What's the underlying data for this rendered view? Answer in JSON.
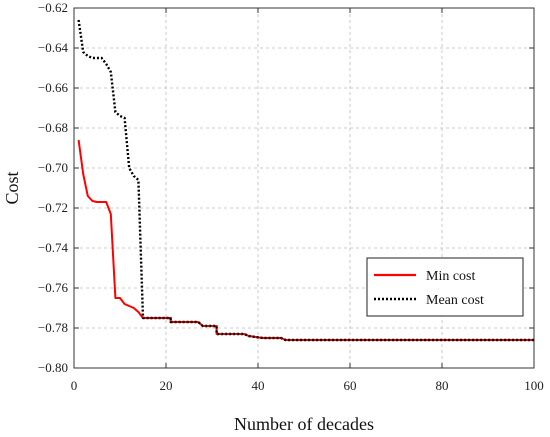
{
  "chart_data": {
    "type": "line",
    "xlabel": "Number of decades",
    "ylabel": "Cost",
    "xlim": [
      0,
      100
    ],
    "ylim": [
      -0.8,
      -0.62
    ],
    "xticks": [
      0,
      20,
      40,
      60,
      80,
      100
    ],
    "yticks": [
      -0.8,
      -0.78,
      -0.76,
      -0.74,
      -0.72,
      -0.7,
      -0.68,
      -0.66,
      -0.64,
      -0.62
    ],
    "xtick_labels": [
      "0",
      "20",
      "40",
      "60",
      "80",
      "100"
    ],
    "ytick_labels": [
      "−0.80",
      "−0.78",
      "−0.76",
      "−0.74",
      "−0.72",
      "−0.70",
      "−0.68",
      "−0.66",
      "−0.64",
      "−0.62"
    ],
    "grid": true,
    "legend_position": "lower-right",
    "series": [
      {
        "name": "Min cost",
        "color": "#ff0000",
        "style": "solid",
        "points": [
          [
            1,
            -0.686
          ],
          [
            2,
            -0.703
          ],
          [
            3,
            -0.714
          ],
          [
            4,
            -0.7165
          ],
          [
            5,
            -0.717
          ],
          [
            7,
            -0.717
          ],
          [
            8,
            -0.723
          ],
          [
            9,
            -0.765
          ],
          [
            10,
            -0.765
          ],
          [
            11,
            -0.768
          ],
          [
            12,
            -0.769
          ],
          [
            13,
            -0.77
          ],
          [
            14,
            -0.772
          ],
          [
            15,
            -0.775
          ],
          [
            21,
            -0.775
          ],
          [
            21,
            -0.777
          ],
          [
            27,
            -0.777
          ],
          [
            28,
            -0.779
          ],
          [
            31,
            -0.779
          ],
          [
            31,
            -0.783
          ],
          [
            37,
            -0.783
          ],
          [
            38,
            -0.784
          ],
          [
            41,
            -0.785
          ],
          [
            45,
            -0.785
          ],
          [
            46,
            -0.786
          ],
          [
            100,
            -0.786
          ]
        ]
      },
      {
        "name": "Mean cost",
        "color": "#000000",
        "style": "dotted",
        "points": [
          [
            1,
            -0.626
          ],
          [
            2,
            -0.642
          ],
          [
            3,
            -0.644
          ],
          [
            4,
            -0.645
          ],
          [
            6,
            -0.645
          ],
          [
            7,
            -0.648
          ],
          [
            8,
            -0.652
          ],
          [
            9,
            -0.672
          ],
          [
            10,
            -0.674
          ],
          [
            11,
            -0.675
          ],
          [
            12,
            -0.7
          ],
          [
            13,
            -0.704
          ],
          [
            14,
            -0.706
          ],
          [
            15,
            -0.775
          ],
          [
            21,
            -0.775
          ],
          [
            21,
            -0.777
          ],
          [
            27,
            -0.777
          ],
          [
            28,
            -0.779
          ],
          [
            31,
            -0.779
          ],
          [
            31,
            -0.783
          ],
          [
            37,
            -0.783
          ],
          [
            38,
            -0.784
          ],
          [
            41,
            -0.785
          ],
          [
            45,
            -0.785
          ],
          [
            46,
            -0.786
          ],
          [
            100,
            -0.786
          ]
        ]
      }
    ]
  }
}
